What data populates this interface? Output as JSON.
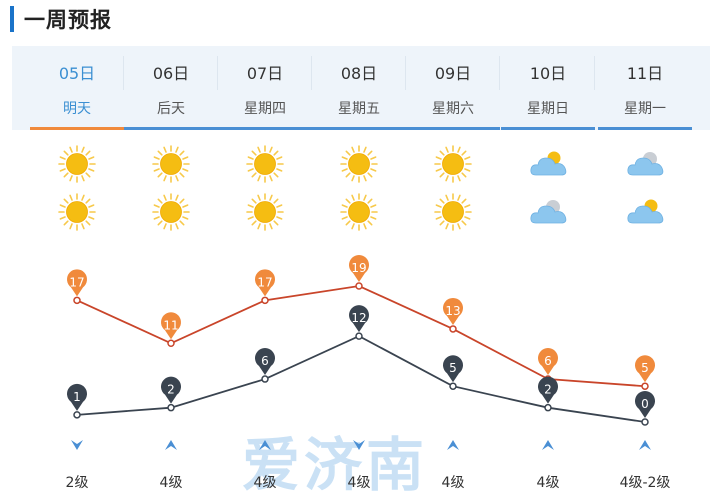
{
  "header": {
    "title": "一周预报"
  },
  "tabs": [
    {
      "date": "05日",
      "day": "明天",
      "active": true
    },
    {
      "date": "06日",
      "day": "后天",
      "active": false
    },
    {
      "date": "07日",
      "day": "星期四",
      "active": false
    },
    {
      "date": "08日",
      "day": "星期五",
      "active": false
    },
    {
      "date": "09日",
      "day": "星期六",
      "active": false
    },
    {
      "date": "10日",
      "day": "星期日",
      "active": false
    },
    {
      "date": "11日",
      "day": "星期一",
      "active": false
    }
  ],
  "weather_icons": {
    "day": [
      "sun-icon",
      "sun-icon",
      "sun-icon",
      "sun-icon",
      "sun-icon",
      "cloud-sun-icon",
      "cloud-icon"
    ],
    "night": [
      "sun-icon",
      "sun-icon",
      "sun-icon",
      "sun-icon",
      "sun-icon",
      "cloud-icon",
      "cloud-sun-icon"
    ]
  },
  "chart_data": {
    "type": "line",
    "x": [
      "05日",
      "06日",
      "07日",
      "08日",
      "09日",
      "10日",
      "11日"
    ],
    "series": [
      {
        "values": [
          17,
          11,
          17,
          19,
          13,
          6,
          5
        ],
        "color": "#f08a3c",
        "line_color": "#c9452a"
      },
      {
        "values": [
          1,
          2,
          6,
          12,
          5,
          2,
          0
        ],
        "color": "#3a4450",
        "line_color": "#3a4450"
      }
    ],
    "ylim": [
      0,
      19
    ]
  },
  "wind": [
    {
      "direction": "down",
      "level": "2级"
    },
    {
      "direction": "up",
      "level": "4级"
    },
    {
      "direction": "up",
      "level": "4级"
    },
    {
      "direction": "down",
      "level": "4级"
    },
    {
      "direction": "up",
      "level": "4级"
    },
    {
      "direction": "up",
      "level": "4级"
    },
    {
      "direction": "up",
      "level": "4级-2级"
    }
  ],
  "watermark": "爱济南",
  "colors": {
    "accent": "#1a73c9",
    "wind_arrow": "#4a8fd4",
    "sun": "#f5c21a",
    "cloud": "#8cc4ee"
  }
}
